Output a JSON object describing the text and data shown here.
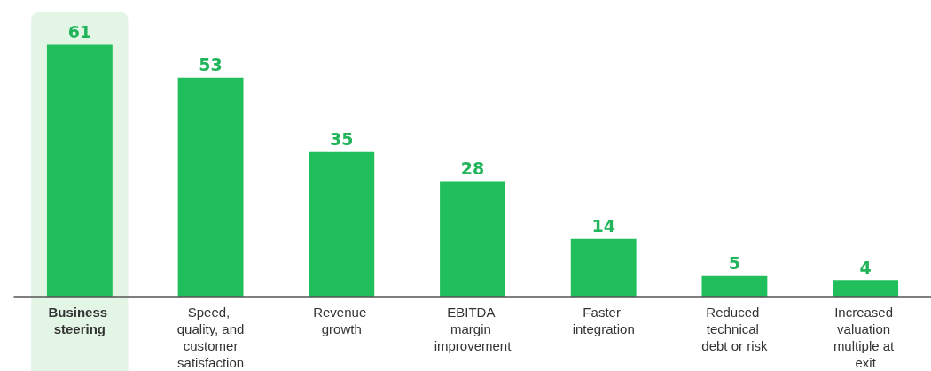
{
  "chart_data": {
    "type": "bar",
    "categories": [
      "Business steering",
      "Speed, quality, and customer satisfaction",
      "Revenue growth",
      "EBITDA margin improvement",
      "Faster integration",
      "Reduced technical debt or risk",
      "Increased valuation multiple at exit"
    ],
    "values": [
      61,
      53,
      35,
      28,
      14,
      5,
      4
    ],
    "color": "#21bf5b",
    "data_labels": true,
    "bands": [
      {
        "axis": "x",
        "from": "Business steering",
        "to": "Business steering",
        "color": "#e3f6e6"
      }
    ]
  }
}
